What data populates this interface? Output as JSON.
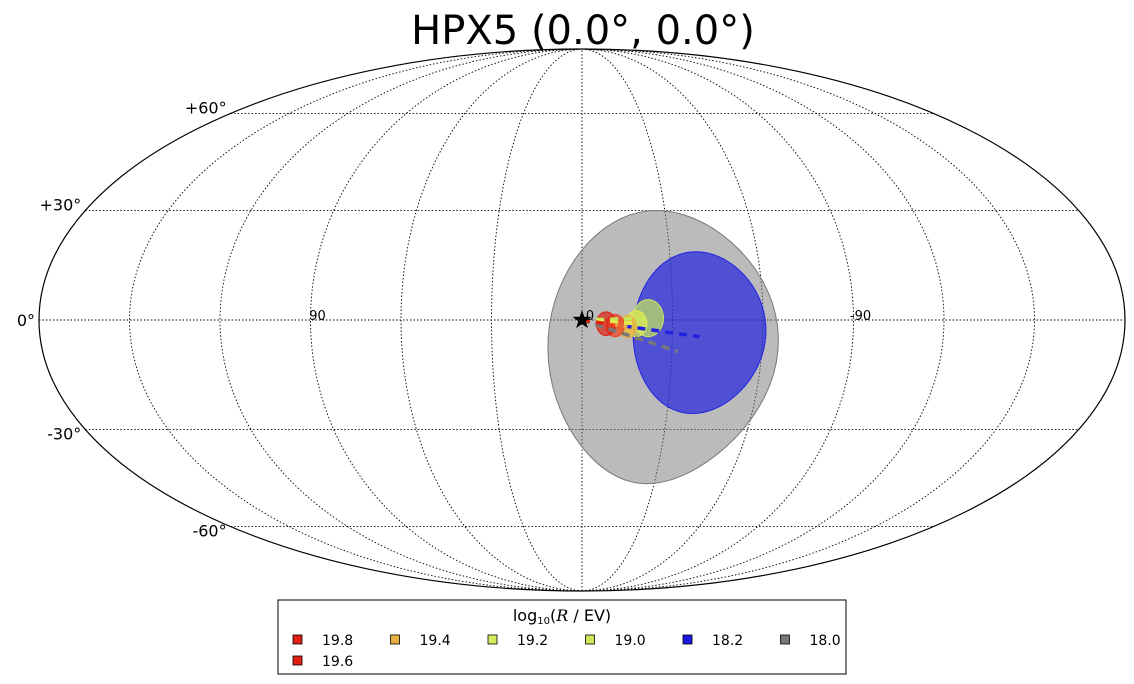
{
  "chart_data": {
    "type": "scatter",
    "projection": "mollweide",
    "title": "HPX5 (0.0°, 0.0°)",
    "lat_ticks": [
      "+60°",
      "+30°",
      "0°",
      "-30°",
      "-60°"
    ],
    "lat_tick_values": [
      60,
      30,
      0,
      -30,
      -60
    ],
    "lon_ticks": [
      "90",
      "0",
      "-90"
    ],
    "lon_tick_values": [
      90,
      0,
      -90
    ],
    "graticule_lon_step": 30,
    "graticule_lat_step": 30,
    "grid": true,
    "source": {
      "name": "HPX5",
      "lon": 0.0,
      "lat": 0.0,
      "marker": "star"
    },
    "legend": {
      "title_prefix": "log",
      "title_sub": "10",
      "title_var": "R",
      "title_suffix": " / EV)",
      "placement": "bottom-center",
      "entries": [
        {
          "label": "19.8",
          "color": "#e02010"
        },
        {
          "label": "19.4",
          "color": "#e8b040"
        },
        {
          "label": "19.2",
          "color": "#d8ec60"
        },
        {
          "label": "19.0",
          "color": "#cce85a"
        },
        {
          "label": "18.2",
          "color": "#1818e0"
        },
        {
          "label": "18.0",
          "color": "#787878"
        },
        {
          "label": "19.6",
          "color": "#e02010"
        }
      ]
    },
    "series": [
      {
        "label": "18.0",
        "color": "#787878",
        "end_lon": -32,
        "end_lat": -8.5,
        "radius_deg": 38,
        "center_lon": -27,
        "center_lat": -8,
        "alpha": 0.5
      },
      {
        "label": "18.2",
        "color": "#2222e0",
        "end_lon": -39,
        "end_lat": -4.5,
        "radius_deg": 22,
        "center_lon": -39,
        "center_lat": -3.5,
        "alpha": 0.7
      },
      {
        "label": "19.0",
        "color": "#c8e85a",
        "end_lon": -22,
        "end_lat": 0.5,
        "radius_deg": 5,
        "center_lon": -22,
        "center_lat": 0.5,
        "alpha": 0.7
      },
      {
        "label": "19.2",
        "color": "#e0ee50",
        "end_lon": -18,
        "end_lat": -1,
        "radius_deg": 3.5,
        "center_lon": -18,
        "center_lat": -1,
        "alpha": 0.7
      },
      {
        "label": "19.4",
        "color": "#e8b040",
        "end_lon": -15,
        "end_lat": -1.8,
        "radius_deg": 3,
        "center_lon": -15,
        "center_lat": -1.8,
        "alpha": 0.75
      },
      {
        "label": "19.6",
        "color": "#ee4020",
        "end_lon": -11,
        "end_lat": -1.5,
        "radius_deg": 3,
        "center_lon": -11,
        "center_lat": -1.5,
        "alpha": 0.7
      },
      {
        "label": "19.8",
        "color": "#e02010",
        "end_lon": -8,
        "end_lat": -1.0,
        "radius_deg": 3.2,
        "center_lon": -8,
        "center_lat": -1,
        "alpha": 0.7
      }
    ]
  }
}
